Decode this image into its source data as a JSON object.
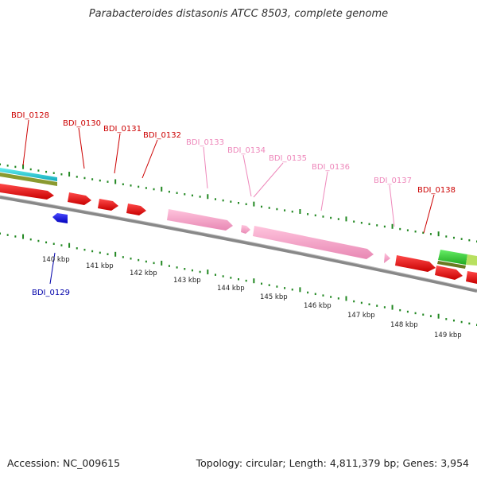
{
  "title": "Parabacteroides distasonis ATCC 8503, complete genome",
  "footer": {
    "accession": "Accession: NC_009615",
    "summary": "Topology: circular; Length: 4,811,379 bp; Genes: 3,954"
  },
  "colors": {
    "forward_gene": "#ee1111",
    "reverse_gene": "#1111dd",
    "rna_gene": "#f4a0c8",
    "label_forward": "#cc0000",
    "label_reverse": "#0000aa",
    "label_rna": "#ee88bb",
    "tick": "#228822",
    "backbone": "#888888"
  },
  "scale_labels": [
    "140 kbp",
    "141 kbp",
    "142 kbp",
    "143 kbp",
    "144 kbp",
    "145 kbp",
    "146 kbp",
    "147 kbp",
    "148 kbp",
    "149 kbp"
  ],
  "gene_labels": [
    {
      "id": "BDI_0128",
      "kind": "forward"
    },
    {
      "id": "BDI_0129",
      "kind": "reverse"
    },
    {
      "id": "BDI_0130",
      "kind": "forward"
    },
    {
      "id": "BDI_0131",
      "kind": "forward"
    },
    {
      "id": "BDI_0132",
      "kind": "forward"
    },
    {
      "id": "BDI_0133",
      "kind": "rna"
    },
    {
      "id": "BDI_0134",
      "kind": "rna"
    },
    {
      "id": "BDI_0135",
      "kind": "rna"
    },
    {
      "id": "BDI_0136",
      "kind": "rna"
    },
    {
      "id": "BDI_0137",
      "kind": "rna"
    },
    {
      "id": "BDI_0138",
      "kind": "forward"
    }
  ]
}
